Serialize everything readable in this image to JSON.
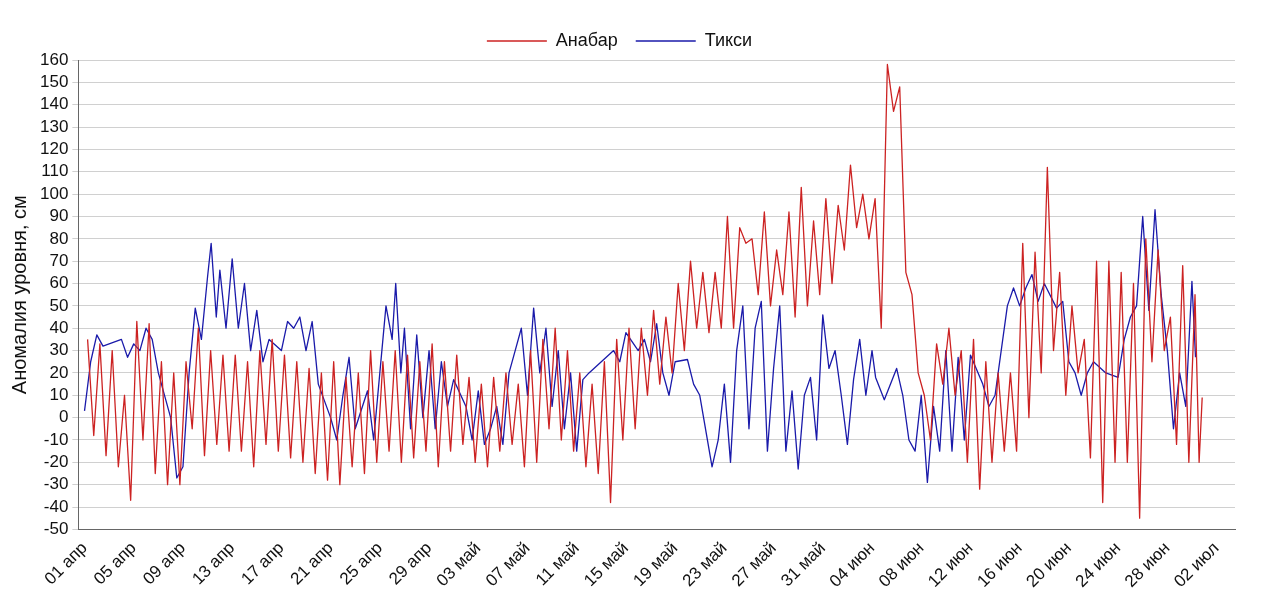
{
  "chart_data": {
    "type": "line",
    "ylabel": "Аномалия уровня, см",
    "xlim": [
      "--03-31T12:00",
      "--07-03T12:00"
    ],
    "xticks": [
      {
        "value": "--04-01",
        "label": "01 апр"
      },
      {
        "value": "--04-05",
        "label": "05 апр"
      },
      {
        "value": "--04-09",
        "label": "09 апр"
      },
      {
        "value": "--04-13",
        "label": "13 апр"
      },
      {
        "value": "--04-17",
        "label": "17 апр"
      },
      {
        "value": "--04-21",
        "label": "21 апр"
      },
      {
        "value": "--04-25",
        "label": "25 апр"
      },
      {
        "value": "--04-29",
        "label": "29 апр"
      },
      {
        "value": "--05-03",
        "label": "03 май"
      },
      {
        "value": "--05-07",
        "label": "07 май"
      },
      {
        "value": "--05-11",
        "label": "11 май"
      },
      {
        "value": "--05-15",
        "label": "15 май"
      },
      {
        "value": "--05-19",
        "label": "19 май"
      },
      {
        "value": "--05-23",
        "label": "23 май"
      },
      {
        "value": "--05-27",
        "label": "27 май"
      },
      {
        "value": "--05-31",
        "label": "31 май"
      },
      {
        "value": "--06-04",
        "label": "04 июн"
      },
      {
        "value": "--06-08",
        "label": "08 июн"
      },
      {
        "value": "--06-12",
        "label": "12 июн"
      },
      {
        "value": "--06-16",
        "label": "16 июн"
      },
      {
        "value": "--06-20",
        "label": "20 июн"
      },
      {
        "value": "--06-24",
        "label": "24 июн"
      },
      {
        "value": "--06-28",
        "label": "28 июн"
      },
      {
        "value": "--07-02",
        "label": "02 июл"
      }
    ],
    "ylim": [
      -50,
      160
    ],
    "yticks": [
      -50,
      -40,
      -30,
      -20,
      -10,
      0,
      10,
      20,
      30,
      40,
      50,
      60,
      70,
      80,
      90,
      100,
      110,
      120,
      130,
      140,
      150,
      160
    ],
    "grid": "y",
    "legend": "top",
    "line_style": "solid",
    "marker": "none",
    "series": [
      {
        "name": "Анабар",
        "color": "#cc2222",
        "x": [
          "--04-01T06:00",
          "--04-01T18:00",
          "--04-02T06:00",
          "--04-02T18:00",
          "--04-03T06:00",
          "--04-03T18:00",
          "--04-04T06:00",
          "--04-04T18:00",
          "--04-05T06:00",
          "--04-05T18:00",
          "--04-06T06:00",
          "--04-06T18:00",
          "--04-07T06:00",
          "--04-07T18:00",
          "--04-08T06:00",
          "--04-08T18:00",
          "--04-09T06:00",
          "--04-09T18:00",
          "--04-10T06:00",
          "--04-10T18:00",
          "--04-11T06:00",
          "--04-11T18:00",
          "--04-12T06:00",
          "--04-12T18:00",
          "--04-13T06:00",
          "--04-13T18:00",
          "--04-14T06:00",
          "--04-14T18:00",
          "--04-15T06:00",
          "--04-15T18:00",
          "--04-16T06:00",
          "--04-16T18:00",
          "--04-17T06:00",
          "--04-17T18:00",
          "--04-18T06:00",
          "--04-18T18:00",
          "--04-19T06:00",
          "--04-19T18:00",
          "--04-20T06:00",
          "--04-20T18:00",
          "--04-21T06:00",
          "--04-21T18:00",
          "--04-22T06:00",
          "--04-22T18:00",
          "--04-23T06:00",
          "--04-23T18:00",
          "--04-24T06:00",
          "--04-24T18:00",
          "--04-25T06:00",
          "--04-25T18:00",
          "--04-26T06:00",
          "--04-26T18:00",
          "--04-27T06:00",
          "--04-27T18:00",
          "--04-28T06:00",
          "--04-28T18:00",
          "--04-29T06:00",
          "--04-29T18:00",
          "--04-30T06:00",
          "--04-30T18:00",
          "--05-01T06:00",
          "--05-01T18:00",
          "--05-02T06:00",
          "--05-02T18:00",
          "--05-03T06:00",
          "--05-03T18:00",
          "--05-04T06:00",
          "--05-04T18:00",
          "--05-05T06:00",
          "--05-05T18:00",
          "--05-06T06:00",
          "--05-06T18:00",
          "--05-07T06:00",
          "--05-07T18:00",
          "--05-08T06:00",
          "--05-08T18:00",
          "--05-09T06:00",
          "--05-09T18:00",
          "--05-10T06:00",
          "--05-10T18:00",
          "--05-11T06:00",
          "--05-11T18:00",
          "--05-12T06:00",
          "--05-12T18:00",
          "--05-13T06:00",
          "--05-13T18:00",
          "--05-14T06:00",
          "--05-14T18:00",
          "--05-15T06:00",
          "--05-15T18:00",
          "--05-16T06:00",
          "--05-16T18:00",
          "--05-17T06:00",
          "--05-17T18:00",
          "--05-18T06:00",
          "--05-18T18:00",
          "--05-19T06:00",
          "--05-19T18:00",
          "--05-20T06:00",
          "--05-20T18:00",
          "--05-21T06:00",
          "--05-21T18:00",
          "--05-22T06:00",
          "--05-22T18:00",
          "--05-23T06:00",
          "--05-23T18:00",
          "--05-24T06:00",
          "--05-24T18:00",
          "--05-25T06:00",
          "--05-25T18:00",
          "--05-26T06:00",
          "--05-26T18:00",
          "--05-27T06:00",
          "--05-27T18:00",
          "--05-28T06:00",
          "--05-28T18:00",
          "--05-29T06:00",
          "--05-29T18:00",
          "--05-30T06:00",
          "--05-30T18:00",
          "--05-31T06:00",
          "--05-31T18:00",
          "--06-01T06:00",
          "--06-01T18:00",
          "--06-02T06:00",
          "--06-02T18:00",
          "--06-03T06:00",
          "--06-03T18:00",
          "--06-04T06:00",
          "--06-04T18:00",
          "--06-05T06:00",
          "--06-05T18:00",
          "--06-06T06:00",
          "--06-06T18:00",
          "--06-07T06:00",
          "--06-07T18:00",
          "--06-08T06:00",
          "--06-08T18:00",
          "--06-09T06:00",
          "--06-09T18:00",
          "--06-10T06:00",
          "--06-10T18:00",
          "--06-11T06:00",
          "--06-11T18:00",
          "--06-12T06:00",
          "--06-12T18:00",
          "--06-13T06:00",
          "--06-13T18:00",
          "--06-14T06:00",
          "--06-14T18:00",
          "--06-15T06:00",
          "--06-15T18:00",
          "--06-16T06:00",
          "--06-16T18:00",
          "--06-17T06:00",
          "--06-17T18:00",
          "--06-18T06:00",
          "--06-18T18:00",
          "--06-19T06:00",
          "--06-19T18:00",
          "--06-20T06:00",
          "--06-20T18:00",
          "--06-21T06:00",
          "--06-21T18:00",
          "--06-22T06:00",
          "--06-22T18:00",
          "--06-23T06:00",
          "--06-23T18:00",
          "--06-24T06:00",
          "--06-24T18:00",
          "--06-25T06:00",
          "--06-25T18:00",
          "--06-26T06:00",
          "--06-26T18:00",
          "--06-27T06:00",
          "--06-27T18:00",
          "--06-28T06:00",
          "--06-28T18:00",
          "--06-29T06:00",
          "--06-29T18:00",
          "--06-30T06:00",
          "--06-30T14:00",
          "--06-30T20:00"
        ],
        "values": [
          35,
          -8,
          33,
          -17,
          30,
          -22,
          10,
          -37,
          43,
          -10,
          42,
          -25,
          25,
          -30,
          20,
          -30,
          25,
          -5,
          40,
          -17,
          30,
          -12,
          28,
          -15,
          28,
          -15,
          25,
          -22,
          30,
          -12,
          35,
          -15,
          28,
          -18,
          25,
          -20,
          22,
          -25,
          20,
          -28,
          25,
          -30,
          18,
          -22,
          20,
          -25,
          30,
          -20,
          25,
          -15,
          30,
          -20,
          28,
          -18,
          25,
          -15,
          33,
          -22,
          25,
          -15,
          28,
          -12,
          18,
          -20,
          15,
          -22,
          18,
          -15,
          20,
          -12,
          15,
          -22,
          30,
          -20,
          35,
          -5,
          40,
          -10,
          30,
          -15,
          20,
          -22,
          15,
          -25,
          25,
          -38,
          35,
          -10,
          40,
          -5,
          40,
          10,
          48,
          15,
          45,
          20,
          60,
          30,
          70,
          40,
          65,
          38,
          65,
          40,
          90,
          40,
          85,
          78,
          80,
          55,
          92,
          50,
          75,
          55,
          92,
          45,
          103,
          50,
          88,
          55,
          98,
          60,
          95,
          75,
          113,
          85,
          100,
          80,
          98,
          40,
          158,
          137,
          148,
          65,
          55,
          20,
          10,
          -10,
          33,
          15,
          40,
          10,
          30,
          -20,
          35,
          -32,
          25,
          -20,
          20,
          -15,
          20,
          -15,
          78,
          0,
          74,
          20,
          112,
          30,
          65,
          10,
          50,
          20,
          35,
          -18,
          70,
          -38,
          70,
          -20,
          65,
          -20,
          60,
          -45,
          80,
          25,
          75,
          30,
          45,
          -12,
          68,
          -20,
          55,
          -20,
          9
        ]
      },
      {
        "name": "Тикси",
        "color": "#1a1aaa",
        "x": [
          "--04-01T00:00",
          "--04-01T12:00",
          "--04-02T00:00",
          "--04-02T12:00",
          "--04-03T00:00",
          "--04-04T00:00",
          "--04-04T12:00",
          "--04-05T00:00",
          "--04-05T12:00",
          "--04-06T00:00",
          "--04-06T12:00",
          "--04-07T00:00",
          "--04-08T00:00",
          "--04-08T12:00",
          "--04-09T00:00",
          "--04-09T12:00",
          "--04-10T00:00",
          "--04-10T12:00",
          "--04-11T00:00",
          "--04-11T07:00",
          "--04-11T17:00",
          "--04-12T00:00",
          "--04-12T12:00",
          "--04-13T00:00",
          "--04-13T12:00",
          "--04-14T00:00",
          "--04-14T12:00",
          "--04-15T00:00",
          "--04-15T12:00",
          "--04-16T00:00",
          "--04-17T00:00",
          "--04-17T12:00",
          "--04-18T00:00",
          "--04-18T12:00",
          "--04-19T00:00",
          "--04-19T12:00",
          "--04-20T00:00",
          "--04-21T00:00",
          "--04-21T12:00",
          "--04-22T00:00",
          "--04-22T12:00",
          "--04-23T00:00",
          "--04-24T00:00",
          "--04-24T12:00",
          "--04-25T00:00",
          "--04-25T12:00",
          "--04-26T00:00",
          "--04-26T07:00",
          "--04-26T17:00",
          "--04-27T00:00",
          "--04-27T12:00",
          "--04-28T00:00",
          "--04-28T12:00",
          "--04-29T00:00",
          "--04-29T12:00",
          "--04-30T00:00",
          "--04-30T12:00",
          "--05-01T00:00",
          "--05-02T00:00",
          "--05-02T12:00",
          "--05-03T00:00",
          "--05-03T12:00",
          "--05-04T00:00",
          "--05-04T12:00",
          "--05-05T00:00",
          "--05-05T12:00",
          "--05-06T00:00",
          "--05-06T12:00",
          "--05-07T00:00",
          "--05-07T12:00",
          "--05-08T00:00",
          "--05-08T12:00",
          "--05-09T00:00",
          "--05-09T12:00",
          "--05-10T00:00",
          "--05-10T12:00",
          "--05-11T00:00",
          "--05-11T12:00",
          "--05-12T00:00",
          "--05-13T00:00",
          "--05-14T00:00",
          "--05-14T12:00",
          "--05-15T00:00",
          "--05-16T00:00",
          "--05-16T12:00",
          "--05-17T00:00",
          "--05-17T12:00",
          "--05-18T00:00",
          "--05-18T12:00",
          "--05-19T00:00",
          "--05-20T00:00",
          "--05-20T12:00",
          "--05-21T00:00",
          "--05-22T00:00",
          "--05-22T12:00",
          "--05-23T00:00",
          "--05-23T12:00",
          "--05-24T00:00",
          "--05-24T12:00",
          "--05-25T00:00",
          "--05-25T12:00",
          "--05-26T00:00",
          "--05-26T12:00",
          "--05-27T00:00",
          "--05-27T12:00",
          "--05-28T00:00",
          "--05-28T12:00",
          "--05-29T00:00",
          "--05-29T12:00",
          "--05-30T00:00",
          "--05-30T12:00",
          "--05-31T00:00",
          "--05-31T12:00",
          "--06-01T00:00",
          "--06-01T12:00",
          "--06-02T00:00",
          "--06-02T12:00",
          "--06-03T00:00",
          "--06-03T12:00",
          "--06-04T00:00",
          "--06-04T07:00",
          "--06-05T00:00",
          "--06-06T00:00",
          "--06-06T12:00",
          "--06-07T00:00",
          "--06-07T12:00",
          "--06-08T00:00",
          "--06-08T12:00",
          "--06-09T00:00",
          "--06-09T12:00",
          "--06-10T00:00",
          "--06-10T12:00",
          "--06-11T00:00",
          "--06-11T12:00",
          "--06-12T00:00",
          "--06-13T00:00",
          "--06-13T12:00",
          "--06-14T00:00",
          "--06-15T00:00",
          "--06-15T12:00",
          "--06-16T00:00",
          "--06-16T12:00",
          "--06-17T00:00",
          "--06-17T12:00",
          "--06-18T00:00",
          "--06-19T00:00",
          "--06-19T12:00",
          "--06-20T00:00",
          "--06-20T12:00",
          "--06-21T00:00",
          "--06-21T12:00",
          "--06-22T00:00",
          "--06-23T00:00",
          "--06-24T00:00",
          "--06-24T12:00",
          "--06-25T00:00",
          "--06-25T12:00",
          "--06-26T00:00",
          "--06-26T12:00",
          "--06-27T00:00",
          "--06-27T12:00",
          "--06-28T00:00",
          "--06-28T12:00",
          "--06-29T00:00",
          "--06-29T12:00",
          "--06-30T00:00",
          "--06-30T07:00"
        ],
        "values": [
          3,
          25,
          37,
          32,
          33,
          35,
          27,
          33,
          30,
          40,
          35,
          20,
          0,
          -27,
          -22,
          20,
          49,
          35,
          63,
          78,
          45,
          66,
          40,
          71,
          40,
          60,
          30,
          48,
          25,
          35,
          30,
          43,
          40,
          45,
          30,
          43,
          15,
          0,
          -10,
          10,
          27,
          -5,
          12,
          -10,
          20,
          50,
          35,
          60,
          20,
          40,
          -5,
          37,
          0,
          30,
          -5,
          25,
          5,
          17,
          5,
          -10,
          12,
          -12,
          -5,
          5,
          -12,
          20,
          30,
          40,
          10,
          49,
          20,
          40,
          5,
          30,
          -5,
          20,
          -15,
          17,
          20,
          25,
          30,
          25,
          38,
          30,
          35,
          25,
          42,
          20,
          10,
          25,
          26,
          15,
          10,
          -22,
          -10,
          15,
          -20,
          30,
          50,
          -5,
          40,
          52,
          -15,
          22,
          50,
          -15,
          12,
          -23,
          10,
          18,
          -10,
          46,
          22,
          30,
          10,
          -12,
          17,
          35,
          10,
          30,
          18,
          8,
          22,
          10,
          -10,
          -15,
          10,
          -29,
          5,
          -15,
          30,
          -15,
          27,
          -10,
          28,
          15,
          5,
          10,
          50,
          58,
          50,
          58,
          64,
          52,
          60,
          49,
          52,
          25,
          20,
          10,
          20,
          25,
          20,
          18,
          35,
          45,
          50,
          90,
          48,
          93,
          55,
          30,
          -5,
          20,
          5,
          61,
          27
        ]
      }
    ]
  }
}
